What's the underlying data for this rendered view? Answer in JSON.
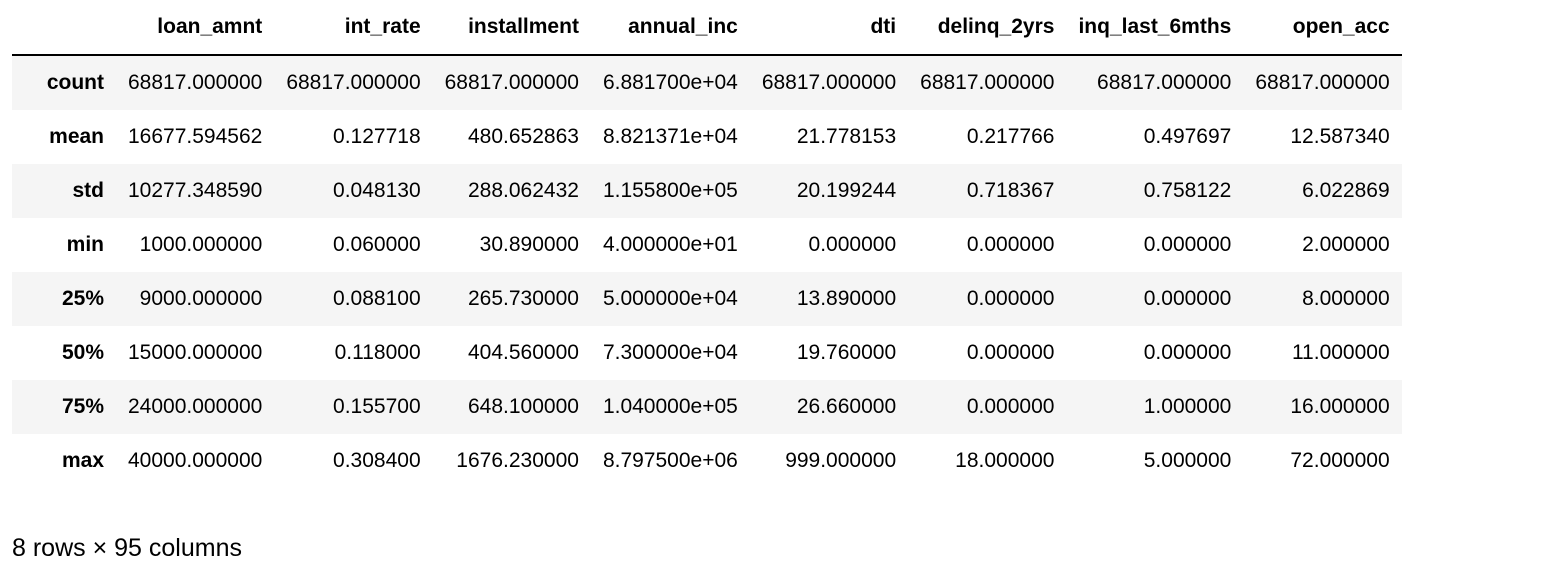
{
  "table": {
    "columns": [
      "loan_amnt",
      "int_rate",
      "installment",
      "annual_inc",
      "dti",
      "delinq_2yrs",
      "inq_last_6mths",
      "open_acc"
    ],
    "rows": [
      {
        "label": "count",
        "values": [
          "68817.000000",
          "68817.000000",
          "68817.000000",
          "6.881700e+04",
          "68817.000000",
          "68817.000000",
          "68817.000000",
          "68817.000000"
        ]
      },
      {
        "label": "mean",
        "values": [
          "16677.594562",
          "0.127718",
          "480.652863",
          "8.821371e+04",
          "21.778153",
          "0.217766",
          "0.497697",
          "12.587340"
        ]
      },
      {
        "label": "std",
        "values": [
          "10277.348590",
          "0.048130",
          "288.062432",
          "1.155800e+05",
          "20.199244",
          "0.718367",
          "0.758122",
          "6.022869"
        ]
      },
      {
        "label": "min",
        "values": [
          "1000.000000",
          "0.060000",
          "30.890000",
          "4.000000e+01",
          "0.000000",
          "0.000000",
          "0.000000",
          "2.000000"
        ]
      },
      {
        "label": "25%",
        "values": [
          "9000.000000",
          "0.088100",
          "265.730000",
          "5.000000e+04",
          "13.890000",
          "0.000000",
          "0.000000",
          "8.000000"
        ]
      },
      {
        "label": "50%",
        "values": [
          "15000.000000",
          "0.118000",
          "404.560000",
          "7.300000e+04",
          "19.760000",
          "0.000000",
          "0.000000",
          "11.000000"
        ]
      },
      {
        "label": "75%",
        "values": [
          "24000.000000",
          "0.155700",
          "648.100000",
          "1.040000e+05",
          "26.660000",
          "0.000000",
          "1.000000",
          "16.000000"
        ]
      },
      {
        "label": "max",
        "values": [
          "40000.000000",
          "0.308400",
          "1676.230000",
          "8.797500e+06",
          "999.000000",
          "18.000000",
          "5.000000",
          "72.000000"
        ]
      }
    ]
  },
  "footer": {
    "shape_text": "8 rows × 95 columns"
  }
}
